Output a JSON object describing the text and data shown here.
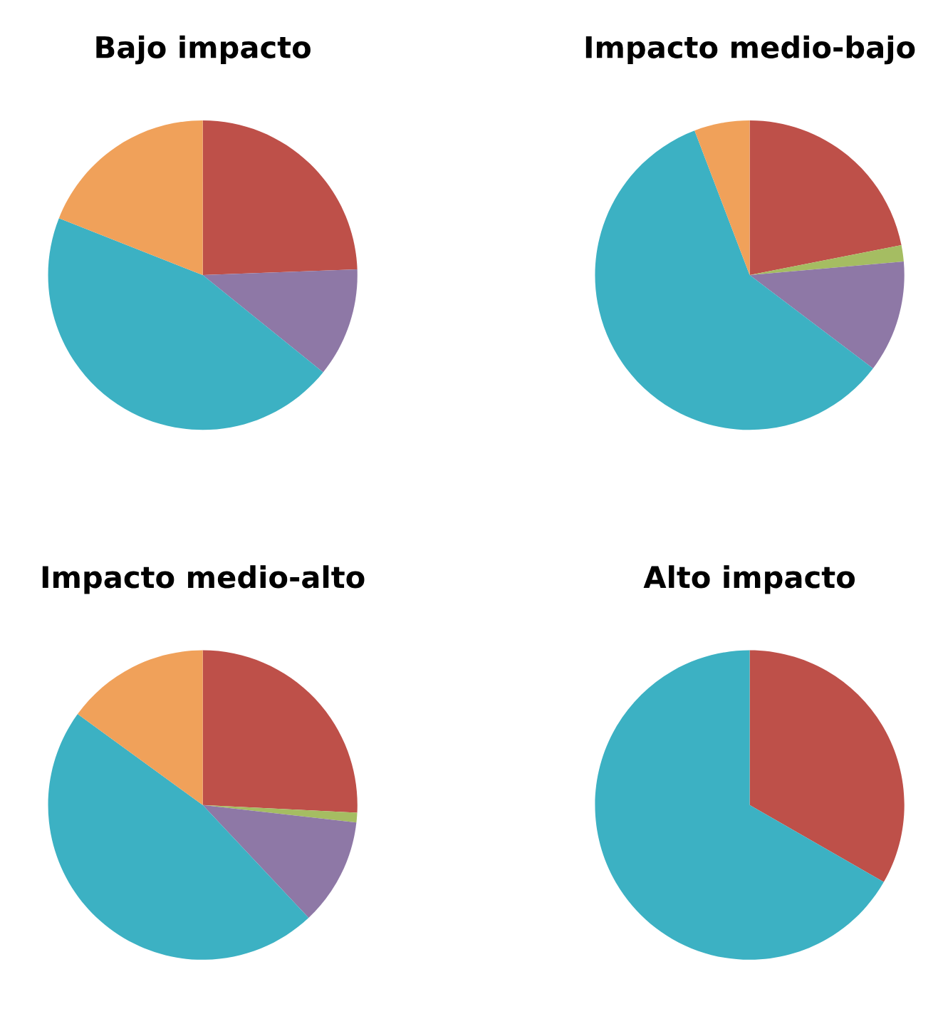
{
  "chart_data": [
    {
      "type": "pie",
      "title": "Bajo impacto",
      "categories": [
        null,
        null,
        null,
        null
      ],
      "values": [
        24.4,
        11.4,
        45.2,
        19.0
      ],
      "colors": [
        "#be5049",
        "#8e78a6",
        "#3cb1c3",
        "#f0a15a"
      ]
    },
    {
      "type": "pie",
      "title": "Impacto medio-bajo",
      "categories": [
        null,
        null,
        null,
        null,
        null
      ],
      "values": [
        21.9,
        1.7,
        11.7,
        58.9,
        5.8
      ],
      "colors": [
        "#be5049",
        "#a5bd62",
        "#8e78a6",
        "#3cb1c3",
        "#f0a15a"
      ]
    },
    {
      "type": "pie",
      "title": "Impacto medio-alto",
      "categories": [
        null,
        null,
        null,
        null,
        null
      ],
      "values": [
        25.8,
        1.0,
        11.2,
        47.0,
        15.0
      ],
      "colors": [
        "#be5049",
        "#a5bd62",
        "#8e78a6",
        "#3cb1c3",
        "#f0a15a"
      ]
    },
    {
      "type": "pie",
      "title": "Alto impacto",
      "categories": [
        null,
        null
      ],
      "values": [
        33.3,
        66.7
      ],
      "colors": [
        "#be5049",
        "#3cb1c3"
      ]
    }
  ]
}
